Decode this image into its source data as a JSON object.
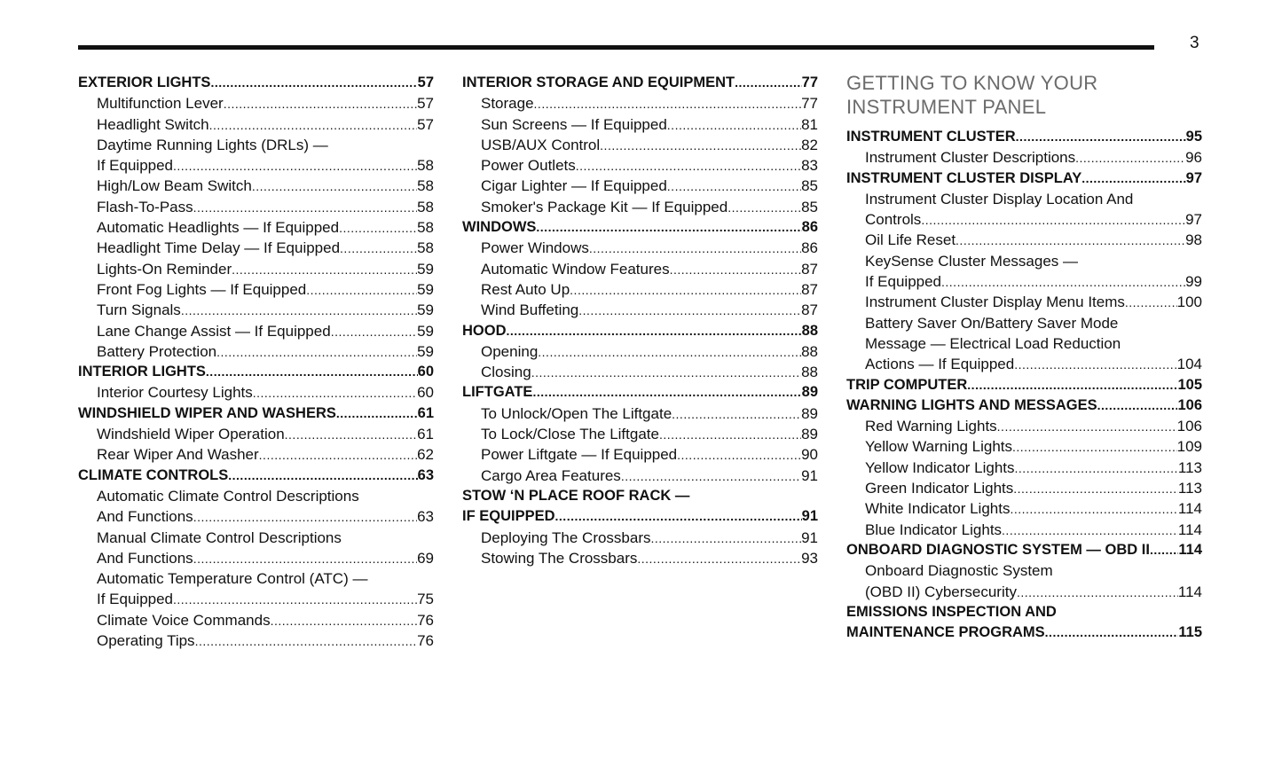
{
  "page_number": "3",
  "section_title": [
    "GETTING TO KNOW YOUR",
    "INSTRUMENT PANEL"
  ],
  "columns": [
    [
      {
        "text": "EXTERIOR LIGHTS",
        "page": "57",
        "bold": true
      },
      {
        "text": "Multifunction Lever",
        "page": "57"
      },
      {
        "text": "Headlight Switch",
        "page": "57"
      },
      {
        "text": "Daytime Running Lights (DRLs) —"
      },
      {
        "text": "If Equipped",
        "page": "58"
      },
      {
        "text": "High/Low Beam Switch",
        "page": "58"
      },
      {
        "text": "Flash-To-Pass",
        "page": "58"
      },
      {
        "text": "Automatic Headlights — If Equipped",
        "page": "58"
      },
      {
        "text": "Headlight Time Delay — If Equipped",
        "page": "58"
      },
      {
        "text": "Lights-On Reminder",
        "page": "59"
      },
      {
        "text": "Front Fog Lights — If Equipped",
        "page": "59"
      },
      {
        "text": "Turn Signals",
        "page": "59"
      },
      {
        "text": "Lane Change Assist — If Equipped",
        "page": "59"
      },
      {
        "text": "Battery Protection",
        "page": "59"
      },
      {
        "text": "INTERIOR LIGHTS",
        "page": "60",
        "bold": true
      },
      {
        "text": "Interior Courtesy Lights",
        "page": "60"
      },
      {
        "text": "WINDSHIELD WIPER AND WASHERS",
        "page": "61",
        "bold": true
      },
      {
        "text": "Windshield Wiper Operation",
        "page": "61"
      },
      {
        "text": "Rear Wiper And Washer",
        "page": "62"
      },
      {
        "text": "CLIMATE CONTROLS",
        "page": "63",
        "bold": true
      },
      {
        "text": "Automatic Climate Control Descriptions"
      },
      {
        "text": "And Functions",
        "page": "63"
      },
      {
        "text": "Manual Climate Control Descriptions"
      },
      {
        "text": "And Functions",
        "page": "69"
      },
      {
        "text": "Automatic Temperature Control (ATC) —"
      },
      {
        "text": "If Equipped",
        "page": "75"
      },
      {
        "text": "Climate Voice Commands",
        "page": "76"
      },
      {
        "text": "Operating Tips",
        "page": "76"
      }
    ],
    [
      {
        "text": "INTERIOR STORAGE AND EQUIPMENT",
        "page": "77",
        "bold": true
      },
      {
        "text": "Storage",
        "page": "77"
      },
      {
        "text": "Sun Screens — If Equipped",
        "page": "81"
      },
      {
        "text": "USB/AUX Control",
        "page": "82"
      },
      {
        "text": "Power Outlets",
        "page": "83"
      },
      {
        "text": "Cigar Lighter — If Equipped",
        "page": "85"
      },
      {
        "text": "Smoker's Package Kit — If Equipped",
        "page": "85"
      },
      {
        "text": "WINDOWS",
        "page": "86",
        "bold": true
      },
      {
        "text": "Power Windows",
        "page": "86"
      },
      {
        "text": "Automatic Window Features",
        "page": "87"
      },
      {
        "text": "Rest Auto Up",
        "page": "87"
      },
      {
        "text": "Wind Buffeting",
        "page": "87"
      },
      {
        "text": "HOOD",
        "page": "88",
        "bold": true
      },
      {
        "text": "Opening",
        "page": "88"
      },
      {
        "text": "Closing",
        "page": "88"
      },
      {
        "text": "LIFTGATE",
        "page": "89",
        "bold": true
      },
      {
        "text": "To Unlock/Open The Liftgate",
        "page": "89"
      },
      {
        "text": "To Lock/Close The Liftgate",
        "page": "89"
      },
      {
        "text": "Power Liftgate — If Equipped",
        "page": "90"
      },
      {
        "text": "Cargo Area Features",
        "page": "91"
      },
      {
        "text": "STOW ‘N PLACE ROOF RACK —",
        "bold": true
      },
      {
        "text": "IF EQUIPPED",
        "page": "91",
        "bold": true
      },
      {
        "text": "Deploying The Crossbars",
        "page": "91"
      },
      {
        "text": "Stowing The Crossbars",
        "page": "93"
      }
    ],
    [
      {
        "text": "INSTRUMENT CLUSTER",
        "page": "95",
        "bold": true
      },
      {
        "text": "Instrument Cluster Descriptions",
        "page": "96"
      },
      {
        "text": "INSTRUMENT CLUSTER DISPLAY",
        "page": "97",
        "bold": true
      },
      {
        "text": "Instrument Cluster Display Location And"
      },
      {
        "text": "Controls",
        "page": "97"
      },
      {
        "text": "Oil Life Reset",
        "page": "98"
      },
      {
        "text": "KeySense Cluster Messages —"
      },
      {
        "text": "If Equipped",
        "page": "99"
      },
      {
        "text": "Instrument Cluster Display Menu Items",
        "page": "100"
      },
      {
        "text": "Battery Saver On/Battery Saver Mode"
      },
      {
        "text": "Message — Electrical Load Reduction"
      },
      {
        "text": "Actions — If Equipped",
        "page": "104"
      },
      {
        "text": "TRIP COMPUTER",
        "page": "105",
        "bold": true
      },
      {
        "text": "WARNING LIGHTS AND MESSAGES",
        "page": "106",
        "bold": true
      },
      {
        "text": "Red Warning Lights",
        "page": "106"
      },
      {
        "text": "Yellow Warning Lights",
        "page": "109"
      },
      {
        "text": "Yellow Indicator Lights",
        "page": "113"
      },
      {
        "text": "Green Indicator Lights",
        "page": "113"
      },
      {
        "text": "White Indicator Lights",
        "page": "114"
      },
      {
        "text": "Blue Indicator Lights",
        "page": "114"
      },
      {
        "text": "ONBOARD DIAGNOSTIC SYSTEM — OBD II",
        "page": "114",
        "bold": true
      },
      {
        "text": "Onboard Diagnostic System"
      },
      {
        "text": "(OBD II) Cybersecurity",
        "page": "114"
      },
      {
        "text": "EMISSIONS INSPECTION AND",
        "bold": true
      },
      {
        "text": "MAINTENANCE PROGRAMS",
        "page": "115",
        "bold": true
      }
    ]
  ]
}
